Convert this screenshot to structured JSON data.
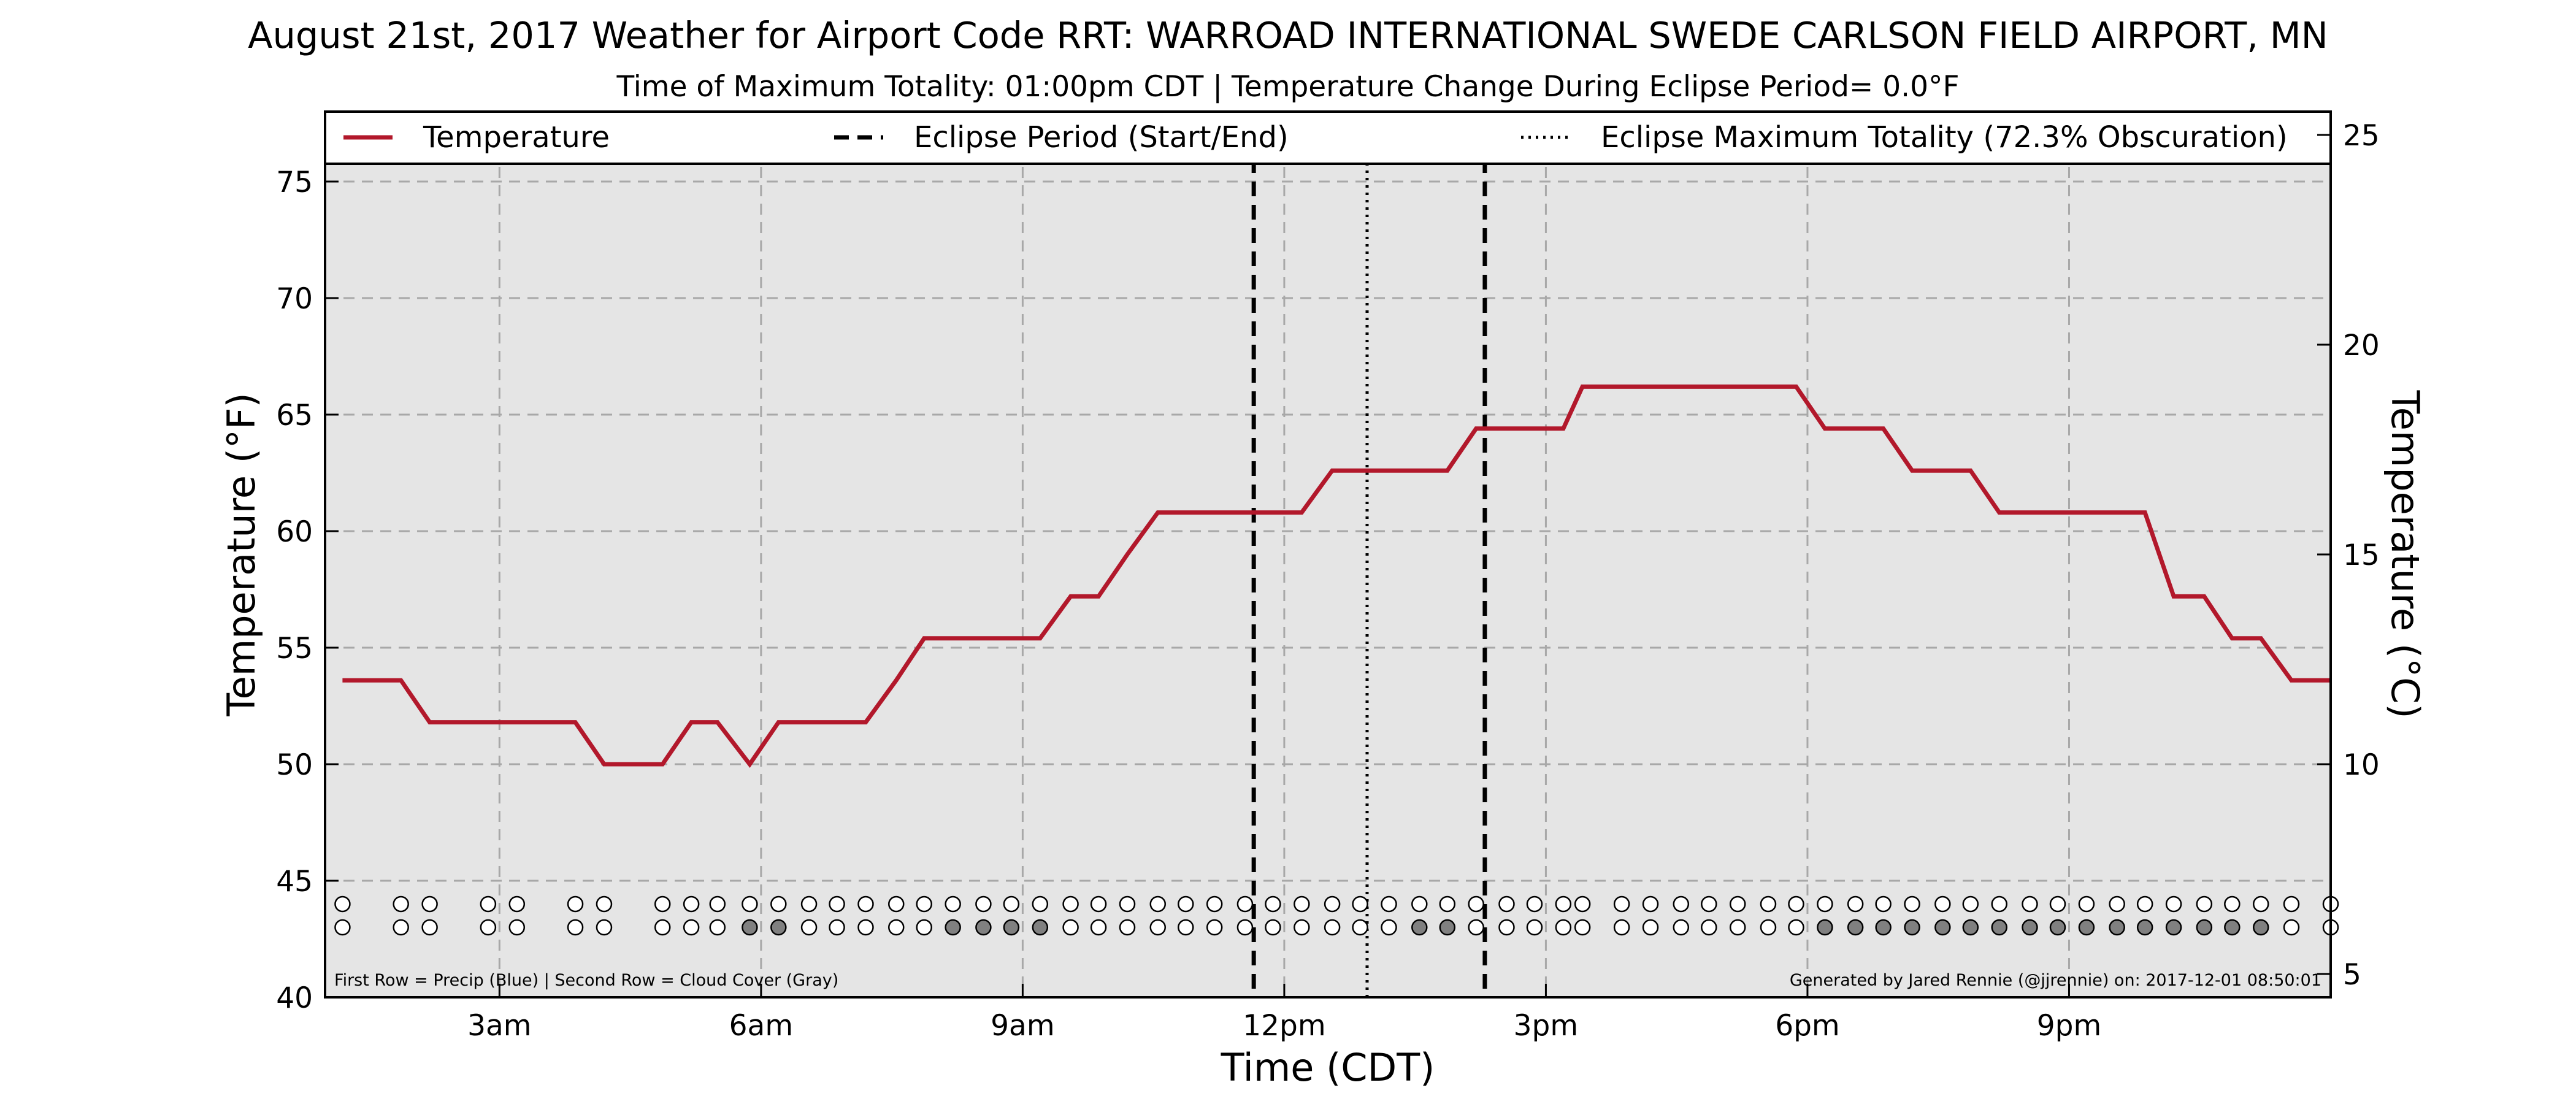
{
  "chart_data": {
    "type": "line",
    "title": "August 21st, 2017 Weather for Airport Code RRT: WARROAD INTERNATIONAL SWEDE CARLSON FIELD AIRPORT, MN",
    "subtitle": "Time of Maximum Totality: 01:00pm CDT | Temperature Change During Eclipse Period= 0.0°F",
    "xlabel": "Time (CDT)",
    "ylabel": "Temperature (°F)",
    "ylabel_right": "Temperature (°C)",
    "xlim": [
      1.0,
      24.0
    ],
    "ylim": [
      40,
      78
    ],
    "x_ticks": [
      {
        "x": 3,
        "label": "3am"
      },
      {
        "x": 6,
        "label": "6am"
      },
      {
        "x": 9,
        "label": "9am"
      },
      {
        "x": 12,
        "label": "12pm"
      },
      {
        "x": 15,
        "label": "3pm"
      },
      {
        "x": 18,
        "label": "6pm"
      },
      {
        "x": 21,
        "label": "9pm"
      }
    ],
    "y_ticks": [
      40,
      45,
      50,
      55,
      60,
      65,
      70,
      75
    ],
    "y_ticks_right": [
      5,
      10,
      15,
      20,
      25
    ],
    "grid": true,
    "legend_position": "top",
    "legend": [
      {
        "label": "Temperature",
        "style": "solid"
      },
      {
        "label": "Eclipse Period (Start/End)",
        "style": "dashed"
      },
      {
        "label": "Eclipse Maximum Totality (72.3% Obscuration)",
        "style": "dotted"
      }
    ],
    "eclipse_start": 11.65,
    "eclipse_max": 12.95,
    "eclipse_end": 14.3,
    "series": [
      {
        "name": "Temperature",
        "color": "#b2182b",
        "x": [
          1.2,
          1.87,
          2.2,
          2.87,
          3.2,
          3.87,
          4.2,
          4.87,
          5.2,
          5.5,
          5.87,
          6.2,
          6.55,
          6.87,
          7.2,
          7.55,
          7.87,
          8.2,
          8.55,
          8.87,
          9.2,
          9.55,
          9.87,
          10.2,
          10.55,
          10.87,
          11.2,
          11.55,
          11.87,
          12.2,
          12.55,
          12.87,
          13.2,
          13.55,
          13.87,
          14.2,
          14.55,
          14.87,
          15.2,
          15.42,
          15.87,
          16.2,
          16.55,
          16.87,
          17.2,
          17.55,
          17.87,
          18.2,
          18.55,
          18.87,
          19.2,
          19.55,
          19.87,
          20.2,
          20.55,
          20.87,
          21.2,
          21.55,
          21.87,
          22.2,
          22.55,
          22.87,
          23.2,
          23.55,
          24.0
        ],
        "values": [
          53.6,
          53.6,
          51.8,
          51.8,
          51.8,
          51.8,
          50.0,
          50.0,
          51.8,
          51.8,
          50.0,
          51.8,
          51.8,
          51.8,
          51.8,
          53.6,
          55.4,
          55.4,
          55.4,
          55.4,
          55.4,
          57.2,
          57.2,
          59.0,
          60.8,
          60.8,
          60.8,
          60.8,
          60.8,
          60.8,
          62.6,
          62.6,
          62.6,
          62.6,
          62.6,
          64.4,
          64.4,
          64.4,
          64.4,
          66.2,
          66.2,
          66.2,
          66.2,
          66.2,
          66.2,
          66.2,
          66.2,
          64.4,
          64.4,
          64.4,
          62.6,
          62.6,
          62.6,
          60.8,
          60.8,
          60.8,
          60.8,
          60.8,
          60.8,
          57.2,
          57.2,
          55.4,
          55.4,
          53.6,
          53.6
        ]
      }
    ],
    "precip_row": {
      "y": 44.0,
      "color_empty": "#ffffff",
      "color_filled": "#1f77b4",
      "filled": []
    },
    "cloud_row": {
      "y": 43.0,
      "color_empty": "#ffffff",
      "color_filled": "#808080",
      "filled": [
        5.87,
        6.2,
        8.2,
        8.55,
        8.87,
        9.2,
        13.55,
        13.87,
        18.2,
        18.55,
        18.87,
        19.2,
        19.55,
        19.87,
        20.2,
        20.55,
        20.87,
        21.2,
        21.55,
        21.87,
        22.2,
        22.55,
        22.87,
        23.2
      ]
    },
    "footnote_left": "First Row = Precip (Blue) | Second Row = Cloud Cover (Gray)",
    "footnote_right": "Generated by Jared Rennie (@jjrennie) on: 2017-12-01 08:50:01"
  }
}
